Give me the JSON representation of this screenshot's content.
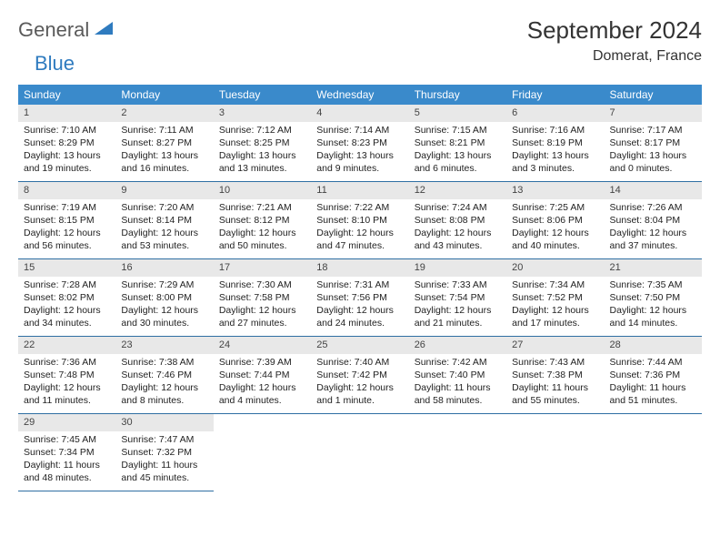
{
  "logo": {
    "text1": "General",
    "text2": "Blue"
  },
  "title": "September 2024",
  "location": "Domerat, France",
  "colors": {
    "header_bg": "#3a8acb",
    "header_text": "#ffffff",
    "daynum_bg": "#e8e8e8",
    "border": "#2f6fa3",
    "logo_gray": "#5a5a5a",
    "logo_blue": "#2f7bbf"
  },
  "weekdays": [
    "Sunday",
    "Monday",
    "Tuesday",
    "Wednesday",
    "Thursday",
    "Friday",
    "Saturday"
  ],
  "leading_blanks": 0,
  "days": [
    {
      "n": 1,
      "sr": "7:10 AM",
      "ss": "8:29 PM",
      "dl": "13 hours and 19 minutes."
    },
    {
      "n": 2,
      "sr": "7:11 AM",
      "ss": "8:27 PM",
      "dl": "13 hours and 16 minutes."
    },
    {
      "n": 3,
      "sr": "7:12 AM",
      "ss": "8:25 PM",
      "dl": "13 hours and 13 minutes."
    },
    {
      "n": 4,
      "sr": "7:14 AM",
      "ss": "8:23 PM",
      "dl": "13 hours and 9 minutes."
    },
    {
      "n": 5,
      "sr": "7:15 AM",
      "ss": "8:21 PM",
      "dl": "13 hours and 6 minutes."
    },
    {
      "n": 6,
      "sr": "7:16 AM",
      "ss": "8:19 PM",
      "dl": "13 hours and 3 minutes."
    },
    {
      "n": 7,
      "sr": "7:17 AM",
      "ss": "8:17 PM",
      "dl": "13 hours and 0 minutes."
    },
    {
      "n": 8,
      "sr": "7:19 AM",
      "ss": "8:15 PM",
      "dl": "12 hours and 56 minutes."
    },
    {
      "n": 9,
      "sr": "7:20 AM",
      "ss": "8:14 PM",
      "dl": "12 hours and 53 minutes."
    },
    {
      "n": 10,
      "sr": "7:21 AM",
      "ss": "8:12 PM",
      "dl": "12 hours and 50 minutes."
    },
    {
      "n": 11,
      "sr": "7:22 AM",
      "ss": "8:10 PM",
      "dl": "12 hours and 47 minutes."
    },
    {
      "n": 12,
      "sr": "7:24 AM",
      "ss": "8:08 PM",
      "dl": "12 hours and 43 minutes."
    },
    {
      "n": 13,
      "sr": "7:25 AM",
      "ss": "8:06 PM",
      "dl": "12 hours and 40 minutes."
    },
    {
      "n": 14,
      "sr": "7:26 AM",
      "ss": "8:04 PM",
      "dl": "12 hours and 37 minutes."
    },
    {
      "n": 15,
      "sr": "7:28 AM",
      "ss": "8:02 PM",
      "dl": "12 hours and 34 minutes."
    },
    {
      "n": 16,
      "sr": "7:29 AM",
      "ss": "8:00 PM",
      "dl": "12 hours and 30 minutes."
    },
    {
      "n": 17,
      "sr": "7:30 AM",
      "ss": "7:58 PM",
      "dl": "12 hours and 27 minutes."
    },
    {
      "n": 18,
      "sr": "7:31 AM",
      "ss": "7:56 PM",
      "dl": "12 hours and 24 minutes."
    },
    {
      "n": 19,
      "sr": "7:33 AM",
      "ss": "7:54 PM",
      "dl": "12 hours and 21 minutes."
    },
    {
      "n": 20,
      "sr": "7:34 AM",
      "ss": "7:52 PM",
      "dl": "12 hours and 17 minutes."
    },
    {
      "n": 21,
      "sr": "7:35 AM",
      "ss": "7:50 PM",
      "dl": "12 hours and 14 minutes."
    },
    {
      "n": 22,
      "sr": "7:36 AM",
      "ss": "7:48 PM",
      "dl": "12 hours and 11 minutes."
    },
    {
      "n": 23,
      "sr": "7:38 AM",
      "ss": "7:46 PM",
      "dl": "12 hours and 8 minutes."
    },
    {
      "n": 24,
      "sr": "7:39 AM",
      "ss": "7:44 PM",
      "dl": "12 hours and 4 minutes."
    },
    {
      "n": 25,
      "sr": "7:40 AM",
      "ss": "7:42 PM",
      "dl": "12 hours and 1 minute."
    },
    {
      "n": 26,
      "sr": "7:42 AM",
      "ss": "7:40 PM",
      "dl": "11 hours and 58 minutes."
    },
    {
      "n": 27,
      "sr": "7:43 AM",
      "ss": "7:38 PM",
      "dl": "11 hours and 55 minutes."
    },
    {
      "n": 28,
      "sr": "7:44 AM",
      "ss": "7:36 PM",
      "dl": "11 hours and 51 minutes."
    },
    {
      "n": 29,
      "sr": "7:45 AM",
      "ss": "7:34 PM",
      "dl": "11 hours and 48 minutes."
    },
    {
      "n": 30,
      "sr": "7:47 AM",
      "ss": "7:32 PM",
      "dl": "11 hours and 45 minutes."
    }
  ],
  "labels": {
    "sunrise": "Sunrise:",
    "sunset": "Sunset:",
    "daylight": "Daylight:"
  }
}
